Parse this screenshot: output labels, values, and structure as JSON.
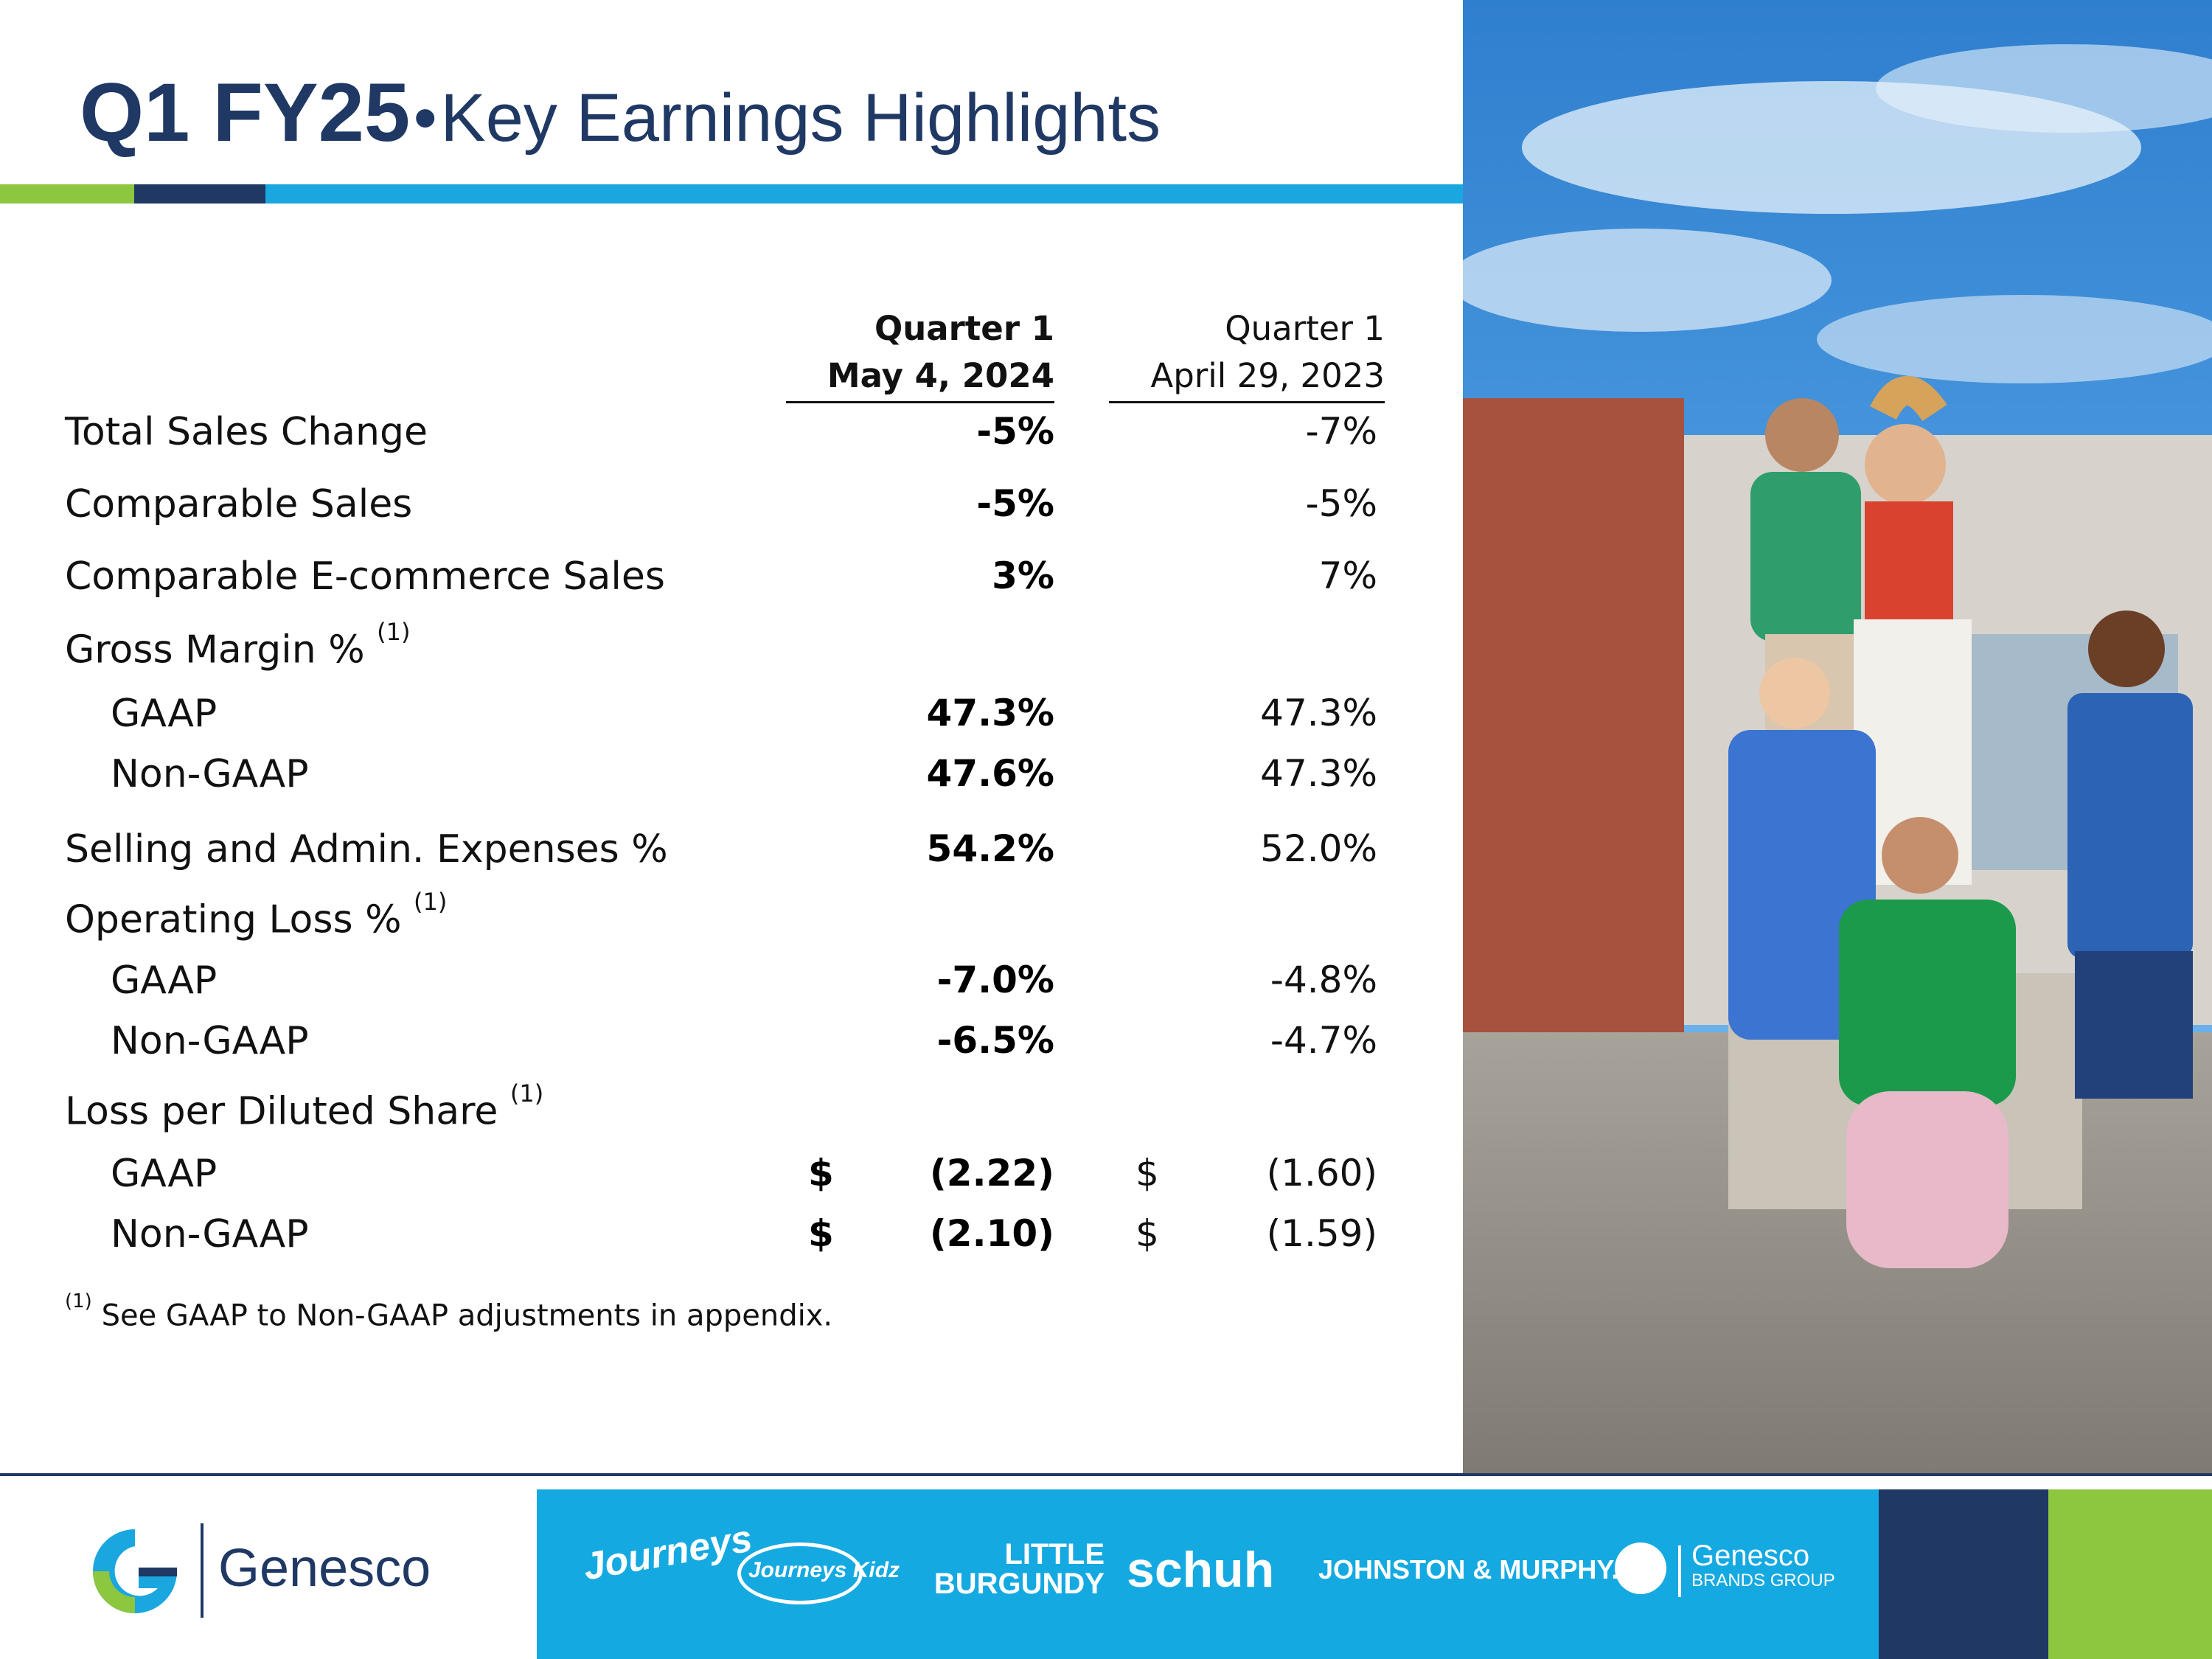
{
  "title": {
    "bold": "Q1 FY25",
    "separator": "•",
    "rest": "Key Earnings Highlights"
  },
  "table": {
    "headers": {
      "current": {
        "line1": "Quarter 1",
        "line2": "May 4, 2024"
      },
      "prior": {
        "line1": "Quarter 1",
        "line2": "April 29, 2023"
      }
    },
    "rows": [
      {
        "label": "Total Sales Change",
        "current": "-5%",
        "prior": "-7%"
      },
      {
        "label": "Comparable Sales",
        "current": "-5%",
        "prior": "-5%"
      },
      {
        "label": "Comparable E-commerce Sales",
        "current": "3%",
        "prior": "7%"
      },
      {
        "label": "Gross Margin %",
        "note": "(1)"
      },
      {
        "label": "GAAP",
        "current": "47.3%",
        "prior": "47.3%"
      },
      {
        "label": "Non-GAAP",
        "current": "47.6%",
        "prior": "47.3%"
      },
      {
        "label": "Selling and Admin. Expenses %",
        "current": "54.2%",
        "prior": "52.0%"
      },
      {
        "label": "Operating Loss %",
        "note": "(1)"
      },
      {
        "label": "GAAP",
        "current": "-7.0%",
        "prior": "-4.8%"
      },
      {
        "label": "Non-GAAP",
        "current": "-6.5%",
        "prior": "-4.7%"
      },
      {
        "label": "Loss per Diluted Share",
        "note": "(1)"
      },
      {
        "label": "GAAP",
        "currency": "$",
        "current": "(2.22)",
        "prior": "(1.60)"
      },
      {
        "label": "Non-GAAP",
        "currency": "$",
        "current": "(2.10)",
        "prior": "(1.59)"
      }
    ]
  },
  "footnote": {
    "marker": "(1)",
    "text": "See GAAP to Non-GAAP adjustments in appendix."
  },
  "footer": {
    "company_logo_text": "Genesco",
    "brands": {
      "journeys": "Journeys",
      "journeys_kidz": "Journeys Kidz",
      "little_burgundy_1": "LITTLE",
      "little_burgundy_2": "BURGUNDY",
      "schuh": "schuh",
      "johnston_murphy": "JOHNSTON & MURPHY.",
      "gbg_1": "Genesco",
      "gbg_2": "BRANDS GROUP"
    }
  },
  "colors": {
    "navy": "#1f3864",
    "brand_blue": "#1aa6df",
    "brand_green": "#8dc63f",
    "sky": "#3f8fd6"
  }
}
